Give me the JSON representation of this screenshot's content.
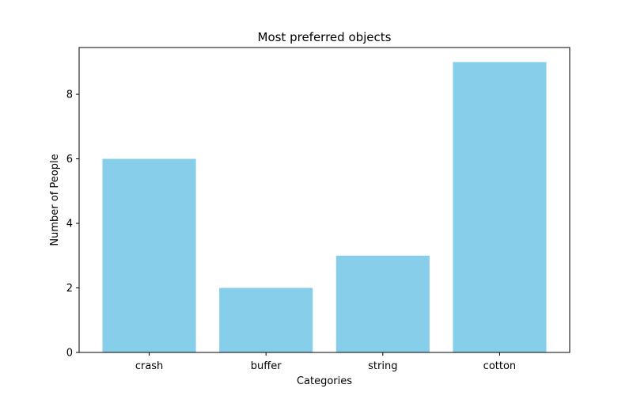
{
  "chart_data": {
    "type": "bar",
    "title": "Most preferred objects",
    "xlabel": "Categories",
    "ylabel": "Number of People",
    "categories": [
      "crash",
      "buffer",
      "string",
      "cotton"
    ],
    "values": [
      6,
      2,
      3,
      9
    ],
    "ylim": [
      0,
      9.45
    ],
    "yticks": [
      0,
      2,
      4,
      6,
      8
    ],
    "grid": false,
    "bar_color": "#87ceeb"
  }
}
